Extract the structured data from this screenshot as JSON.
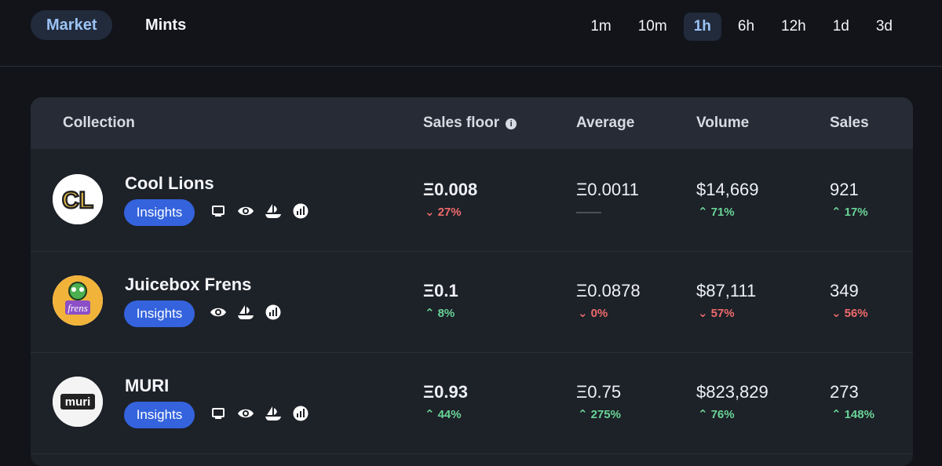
{
  "nav": {
    "tabs": [
      {
        "label": "Market",
        "active": true
      },
      {
        "label": "Mints",
        "active": false
      }
    ],
    "timeframes": [
      "1m",
      "10m",
      "1h",
      "6h",
      "12h",
      "1d",
      "3d"
    ],
    "active_timeframe": "1h"
  },
  "table": {
    "headers": {
      "collection": "Collection",
      "sales_floor": "Sales floor",
      "average": "Average",
      "volume": "Volume",
      "sales": "Sales"
    },
    "rows": [
      {
        "name": "Cool Lions",
        "avatar_text": "CL",
        "insights_label": "Insights",
        "link_icons": [
          "website-icon",
          "eye-icon",
          "opensea-icon",
          "chart-icon"
        ],
        "sales_floor": "Ξ0.008",
        "sales_floor_change": "27%",
        "sales_floor_dir": "down",
        "average": "Ξ0.0011",
        "average_change": "",
        "average_dir": "none",
        "volume": "$14,669",
        "volume_change": "71%",
        "volume_dir": "up",
        "sales": "921",
        "sales_change": "17%",
        "sales_dir": "up"
      },
      {
        "name": "Juicebox Frens",
        "avatar_text": "frens",
        "insights_label": "Insights",
        "link_icons": [
          "eye-icon",
          "opensea-icon",
          "chart-icon"
        ],
        "sales_floor": "Ξ0.1",
        "sales_floor_change": "8%",
        "sales_floor_dir": "up",
        "average": "Ξ0.0878",
        "average_change": "0%",
        "average_dir": "down",
        "volume": "$87,111",
        "volume_change": "57%",
        "volume_dir": "down",
        "sales": "349",
        "sales_change": "56%",
        "sales_dir": "down"
      },
      {
        "name": "MURI",
        "avatar_text": "muri",
        "insights_label": "Insights",
        "link_icons": [
          "website-icon",
          "eye-icon",
          "opensea-icon",
          "chart-icon"
        ],
        "sales_floor": "Ξ0.93",
        "sales_floor_change": "44%",
        "sales_floor_dir": "up",
        "average": "Ξ0.75",
        "average_change": "275%",
        "average_dir": "up",
        "volume": "$823,829",
        "volume_change": "76%",
        "volume_dir": "up",
        "sales": "273",
        "sales_change": "148%",
        "sales_dir": "up"
      }
    ]
  },
  "colors": {
    "accent": "#3463dd",
    "up": "#69d497",
    "down": "#ee6b6b"
  }
}
